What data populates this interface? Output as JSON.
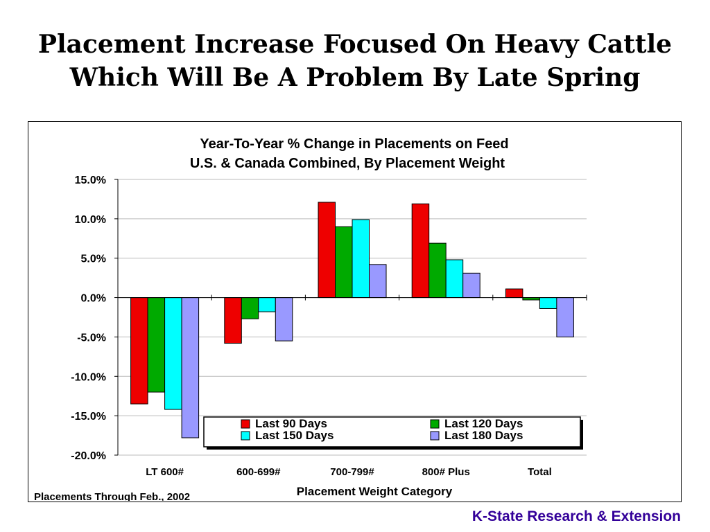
{
  "slide": {
    "title_line1": "Placement Increase Focused On Heavy Cattle",
    "title_line2": "Which Will Be A Problem By Late Spring",
    "footer": "K-State Research & Extension"
  },
  "chart_data": {
    "type": "bar",
    "title": "Year-To-Year % Change in Placements on Feed",
    "subtitle": "U.S. & Canada Combined, By Placement Weight",
    "xlabel": "Placement Weight Category",
    "ylabel": "",
    "note": "Placements Through Feb., 2002",
    "categories": [
      "LT 600#",
      "600-699#",
      "700-799#",
      "800# Plus",
      "Total"
    ],
    "series": [
      {
        "name": "Last 90 Days",
        "color": "#ee0000",
        "values": [
          -13.5,
          -5.8,
          12.1,
          11.9,
          1.1
        ]
      },
      {
        "name": "Last 120 Days",
        "color": "#00aa00",
        "values": [
          -12.0,
          -2.7,
          9.0,
          6.9,
          -0.3
        ]
      },
      {
        "name": "Last 150 Days",
        "color": "#00ffff",
        "values": [
          -14.2,
          -1.8,
          9.9,
          4.8,
          -1.4
        ]
      },
      {
        "name": "Last 180 Days",
        "color": "#9999ff",
        "values": [
          -17.8,
          -5.5,
          4.2,
          3.1,
          -5.0
        ]
      }
    ],
    "ylim": [
      -20,
      15
    ],
    "yticks": [
      15,
      10,
      5,
      0,
      -5,
      -10,
      -15,
      -20
    ],
    "ytick_labels": [
      "15.0%",
      "10.0%",
      "5.0%",
      "0.0%",
      "-5.0%",
      "-10.0%",
      "-15.0%",
      "-20.0%"
    ],
    "grid": true,
    "legend_position": "bottom-right"
  }
}
